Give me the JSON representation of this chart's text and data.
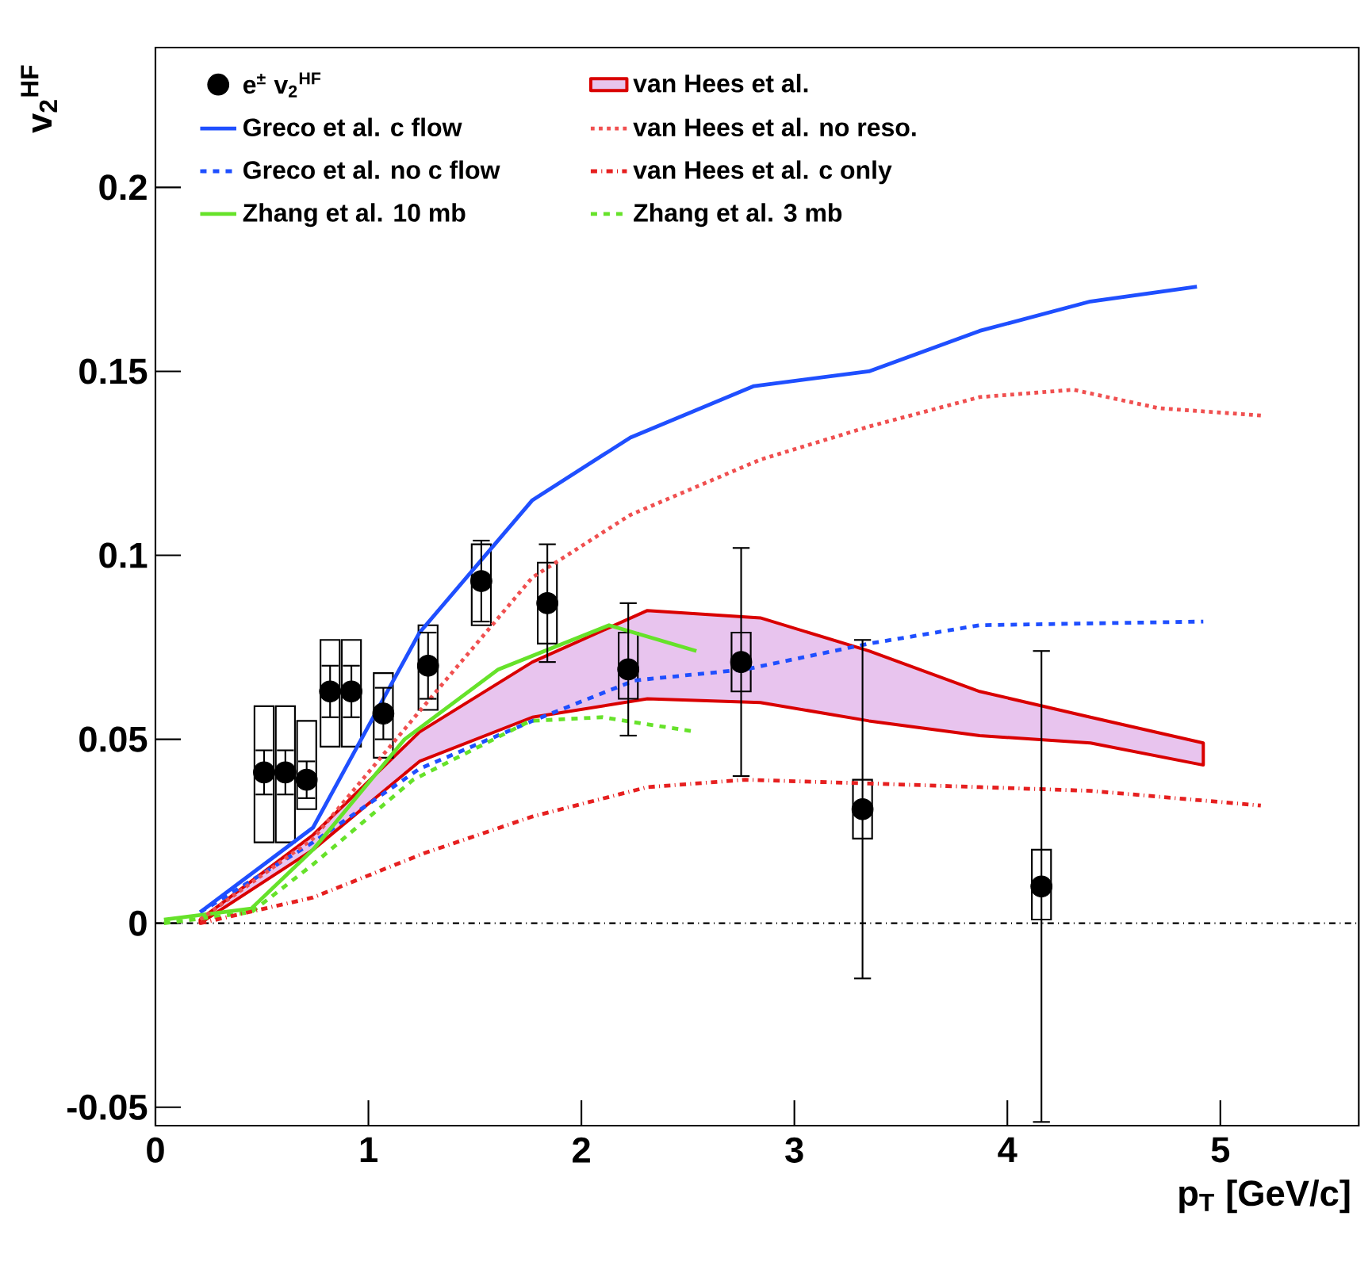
{
  "chart_data": {
    "type": "line",
    "xlabel": "p$_{T}$ [GeV/c]",
    "ylabel": "v$_{2}$$^{HF}$",
    "xlim": [
      0,
      5.65
    ],
    "ylim": [
      -0.055,
      0.238
    ],
    "xticks": [
      0,
      1,
      2,
      3,
      4,
      5
    ],
    "yticks": [
      -0.05,
      0,
      0.05,
      0.1,
      0.15,
      0.2
    ],
    "legend": "top",
    "grid": false,
    "ref_lines": [
      {
        "axis": "y",
        "value": 0,
        "color": "#000000",
        "line_style": "dashdotted"
      }
    ],
    "series": [
      {
        "name": "e$^{±}$ v$_{2}$$^{HF}$",
        "type": "scatter",
        "marker": "circle",
        "color": "#000000",
        "x": [
          0.51,
          0.61,
          0.71,
          0.82,
          0.92,
          1.07,
          1.28,
          1.53,
          1.84,
          2.22,
          2.75,
          3.32,
          4.16
        ],
        "values": [
          0.041,
          0.041,
          0.039,
          0.063,
          0.063,
          0.057,
          0.07,
          0.093,
          0.087,
          0.069,
          0.071,
          0.031,
          0.01
        ],
        "errors": [
          0.006,
          0.006,
          0.005,
          0.007,
          0.007,
          0.007,
          0.009,
          0.011,
          0.016,
          0.018,
          0.031,
          0.046,
          0.064
        ]
      },
      {
        "name": "Greco et al. c flow",
        "line_style": "solid",
        "color": "#1f4fff",
        "x": [
          0.21,
          0.74,
          1.24,
          1.77,
          2.23,
          2.81,
          3.35,
          3.87,
          4.39,
          4.89
        ],
        "values": [
          0.003,
          0.026,
          0.079,
          0.115,
          0.132,
          0.146,
          0.15,
          0.161,
          0.169,
          0.173
        ]
      },
      {
        "name": "Greco et al. no c flow",
        "line_style": "dashed",
        "color": "#1f4fff",
        "x": [
          0.21,
          0.74,
          1.24,
          1.77,
          2.25,
          2.77,
          3.35,
          3.87,
          4.92
        ],
        "values": [
          0.003,
          0.022,
          0.042,
          0.055,
          0.066,
          0.069,
          0.076,
          0.081,
          0.082
        ]
      },
      {
        "name": "Zhang et al. 10 mb",
        "line_style": "solid",
        "color": "#66e22a",
        "x": [
          0.04,
          0.45,
          0.74,
          1.17,
          1.61,
          2.13,
          2.54
        ],
        "values": [
          0.001,
          0.004,
          0.02,
          0.05,
          0.069,
          0.081,
          0.074
        ]
      },
      {
        "name": "Zhang et al. 3 mb",
        "line_style": "dashed",
        "color": "#66e22a",
        "x": [
          0.04,
          0.45,
          0.74,
          1.21,
          1.76,
          2.1,
          2.54
        ],
        "values": [
          0.0,
          0.003,
          0.016,
          0.039,
          0.055,
          0.056,
          0.052
        ]
      },
      {
        "name": "van Hees et al.",
        "type": "line",
        "color": "#e8c4ee",
        "x": [
          0.21,
          0.74,
          1.24,
          1.77,
          2.31,
          2.84,
          3.35,
          3.87,
          4.39,
          4.92
        ],
        "values": [
          null,
          null,
          null,
          null,
          null,
          null,
          null,
          null,
          null,
          null
        ],
        "lower": [
          0.0,
          0.02,
          0.044,
          0.056,
          0.061,
          0.06,
          0.055,
          0.051,
          0.049,
          0.043
        ],
        "upper": [
          0.001,
          0.024,
          0.052,
          0.071,
          0.085,
          0.083,
          0.074,
          0.063,
          0.056,
          0.049
        ]
      },
      {
        "name": "van Hees et al. no reso.",
        "line_style": "dotted",
        "color": "#f05050",
        "x": [
          0.21,
          0.74,
          1.26,
          1.77,
          2.23,
          2.84,
          3.35,
          3.87,
          4.31,
          4.71,
          5.19
        ],
        "values": [
          0.001,
          0.023,
          0.059,
          0.094,
          0.111,
          0.126,
          0.135,
          0.143,
          0.145,
          0.14,
          0.138
        ]
      },
      {
        "name": "van Hees et al. c only",
        "line_style": "dashdotted",
        "color": "#e62020",
        "x": [
          0.21,
          0.74,
          1.26,
          1.77,
          2.31,
          2.77,
          3.35,
          3.87,
          4.39,
          5.19
        ],
        "values": [
          0.0,
          0.007,
          0.019,
          0.029,
          0.037,
          0.039,
          0.038,
          0.037,
          0.036,
          0.032
        ]
      },
      {
        "type": "bar",
        "color": "#000000",
        "x": [
          0.51,
          0.61,
          0.71,
          0.82,
          0.92,
          1.07,
          1.28,
          1.53,
          1.84,
          2.22,
          2.75,
          3.32,
          4.16
        ],
        "base": [
          0.022,
          0.022,
          0.031,
          0.048,
          0.048,
          0.045,
          0.058,
          0.081,
          0.076,
          0.061,
          0.063,
          0.023,
          0.001
        ],
        "values": [
          0.037,
          0.037,
          0.024,
          0.029,
          0.029,
          0.023,
          0.023,
          0.022,
          0.022,
          0.018,
          0.016,
          0.016,
          0.019
        ]
      }
    ]
  }
}
